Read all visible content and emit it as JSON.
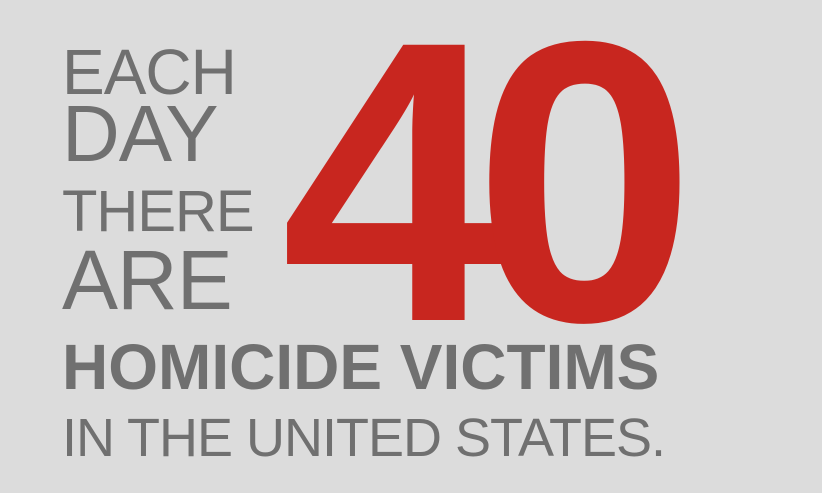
{
  "infographic": {
    "stack_lines": [
      "EACH",
      "DAY",
      "THERE",
      "ARE"
    ],
    "number": "40",
    "headline": "HOMICIDE VICTIMS",
    "subline": "IN THE UNITED STATES."
  },
  "colors": {
    "background": "#dcdcdc",
    "text_gray": "#707070",
    "accent_red": "#c8261f"
  }
}
